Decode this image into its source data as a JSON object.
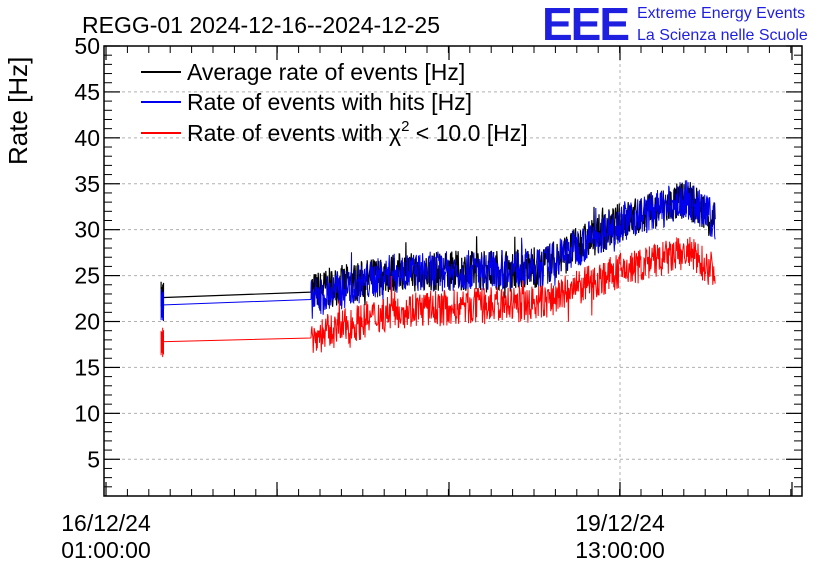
{
  "chart_data": {
    "type": "line",
    "title": "REGG-01 2024-12-16--2024-12-25",
    "ylabel": "Rate [Hz]",
    "xlabel": "",
    "ylim": [
      1,
      50
    ],
    "y_ticks": [
      "5",
      "10",
      "15",
      "20",
      "25",
      "30",
      "35",
      "40",
      "45",
      "50"
    ],
    "x_ticks": [
      {
        "date": "16/12/24",
        "time": "01:00:00"
      },
      {
        "date": "19/12/24",
        "time": "13:00:00"
      }
    ],
    "grid": true,
    "legend_position": "top-left",
    "series": [
      {
        "name": "Average rate of events [Hz]",
        "color": "#000000",
        "x": [
          "2024-12-16 10:00",
          "2024-12-17 10:30",
          "2024-12-18 00:00",
          "2024-12-19 00:00",
          "2024-12-19 13:00",
          "2024-12-20 00:00",
          "2024-12-20 04:30"
        ],
        "values": [
          22.6,
          23.2,
          25.3,
          25.8,
          30.8,
          33.3,
          31.0
        ]
      },
      {
        "name": "Rate of events with hits [Hz]",
        "color": "#0000ee",
        "x": [
          "2024-12-16 10:00",
          "2024-12-17 10:30",
          "2024-12-18 00:00",
          "2024-12-19 00:00",
          "2024-12-19 13:00",
          "2024-12-20 00:00",
          "2024-12-20 04:30"
        ],
        "values": [
          21.8,
          22.4,
          25.3,
          25.8,
          30.8,
          33.3,
          31.0
        ]
      },
      {
        "name": "Rate of events with χ² < 10.0 [Hz]",
        "name_parts": {
          "prefix": "Rate of events with ",
          "chi": "χ",
          "sup": "2",
          "suffix": " < 10.0 [Hz]"
        },
        "color": "#ff0000",
        "x": [
          "2024-12-16 10:00",
          "2024-12-17 10:30",
          "2024-12-18 00:00",
          "2024-12-19 00:00",
          "2024-12-19 13:00",
          "2024-12-20 00:00",
          "2024-12-20 04:30"
        ],
        "values": [
          17.8,
          18.2,
          21.2,
          22.0,
          25.5,
          27.5,
          25.5
        ]
      }
    ]
  },
  "logo": {
    "text": "EEE",
    "line1": "Extreme Energy Events",
    "line2": "La Scienza nelle Scuole",
    "color": "#1f1fe0"
  }
}
